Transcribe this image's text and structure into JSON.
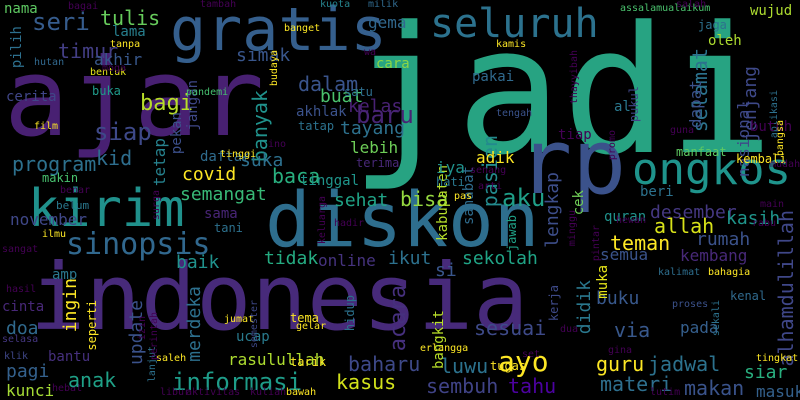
{
  "words": [
    {
      "text": "indonesia",
      "color": "#472a7a"
    },
    {
      "text": "jadi",
      "color": "#27a382"
    },
    {
      "text": "ajar",
      "color": "#482072"
    },
    {
      "text": "diskon",
      "color": "#2e6e8e"
    },
    {
      "text": "rp",
      "color": "#3b528b"
    },
    {
      "text": "gratis",
      "color": "#355f8d"
    },
    {
      "text": "kirim",
      "color": "#20918c"
    },
    {
      "text": "ongkos",
      "color": "#1f948c"
    },
    {
      "text": "seluruh",
      "color": "#2c728e"
    },
    {
      "text": "sinopsis",
      "color": "#31688e"
    },
    {
      "text": "informasi",
      "color": "#1e9c89"
    },
    {
      "text": "seri",
      "color": "#365c8d"
    },
    {
      "text": "tulis",
      "color": "#67cc5c"
    },
    {
      "text": "lama",
      "color": "#277f8e"
    },
    {
      "text": "timur",
      "color": "#433e85"
    },
    {
      "text": "akhir",
      "color": "#38588c"
    },
    {
      "text": "pilih",
      "color": "#2d708e"
    },
    {
      "text": "nama",
      "color": "#5ec962"
    },
    {
      "text": "cerita",
      "color": "#404688"
    },
    {
      "text": "siap",
      "color": "#3e4989"
    },
    {
      "text": "bagi",
      "color": "#b8de29"
    },
    {
      "text": "buka",
      "color": "#1f9a8a"
    },
    {
      "text": "kid",
      "color": "#2e6e8e"
    },
    {
      "text": "program",
      "color": "#2d718e"
    },
    {
      "text": "makin",
      "color": "#48c16e"
    },
    {
      "text": "belum",
      "color": "#2a788e"
    },
    {
      "text": "november",
      "color": "#3f4788"
    },
    {
      "text": "sangat",
      "color": "#440154"
    },
    {
      "text": "ilmu",
      "color": "#fde725"
    },
    {
      "text": "hasil",
      "color": "#440154"
    },
    {
      "text": "cinta",
      "color": "#482878"
    },
    {
      "text": "doa",
      "color": "#306a8e"
    },
    {
      "text": "selasa",
      "color": "#453781"
    },
    {
      "text": "bantu",
      "color": "#46307e"
    },
    {
      "text": "pagi",
      "color": "#34618d"
    },
    {
      "text": "klik",
      "color": "#3f4788"
    },
    {
      "text": "kunci",
      "color": "#a5db36"
    },
    {
      "text": "hebat",
      "color": "#440154"
    },
    {
      "text": "gema",
      "color": "#31688e"
    },
    {
      "text": "cara",
      "color": "#8bd646"
    },
    {
      "text": "simak",
      "color": "#39568c"
    },
    {
      "text": "dalam",
      "color": "#3a548c"
    },
    {
      "text": "kelas",
      "color": "#482173"
    },
    {
      "text": "buat",
      "color": "#4ac16d"
    },
    {
      "text": "satu",
      "color": "#2e6e8e"
    },
    {
      "text": "akhlak",
      "color": "#3b528b"
    },
    {
      "text": "baru",
      "color": "#482475"
    },
    {
      "text": "banyak",
      "color": "#20928c"
    },
    {
      "text": "tatap",
      "color": "#2c728e"
    },
    {
      "text": "tayang",
      "color": "#2d718e"
    },
    {
      "text": "pekan",
      "color": "#3c508b"
    },
    {
      "text": "jangan",
      "color": "#3f4889"
    },
    {
      "text": "tetap",
      "color": "#26828e"
    },
    {
      "text": "lebih",
      "color": "#6ece58"
    },
    {
      "text": "covid",
      "color": "#fde725"
    },
    {
      "text": "suka",
      "color": "#2d708e"
    },
    {
      "text": "baca",
      "color": "#29af7f"
    },
    {
      "text": "tinggal",
      "color": "#1f958b"
    },
    {
      "text": "semangat",
      "color": "#38b977"
    },
    {
      "text": "sama",
      "color": "#482576"
    },
    {
      "text": "sehat",
      "color": "#20a386"
    },
    {
      "text": "bisa",
      "color": "#95d840"
    },
    {
      "text": "aku",
      "color": "#1f9f88"
    },
    {
      "text": "lengkap",
      "color": "#3d4e8a"
    },
    {
      "text": "teman",
      "color": "#fde725"
    },
    {
      "text": "allah",
      "color": "#d8e219"
    },
    {
      "text": "semua",
      "color": "#3a538b"
    },
    {
      "text": "tidak",
      "color": "#25ac82"
    },
    {
      "text": "online",
      "color": "#46337f"
    },
    {
      "text": "ikut",
      "color": "#2d718e"
    },
    {
      "text": "si",
      "color": "#39568c"
    },
    {
      "text": "sekolah",
      "color": "#20a486"
    },
    {
      "text": "baik",
      "color": "#20928c"
    },
    {
      "text": "amp",
      "color": "#2a778e"
    },
    {
      "text": "ingin",
      "color": "#fde725"
    },
    {
      "text": "merdeka",
      "color": "#2d708e"
    },
    {
      "text": "ucap",
      "color": "#297b8e"
    },
    {
      "text": "update",
      "color": "#3b528b"
    },
    {
      "text": "anak",
      "color": "#1fa187"
    },
    {
      "text": "kasus",
      "color": "#d2e21b"
    },
    {
      "text": "rasulullah",
      "color": "#addc30"
    },
    {
      "text": "baharu",
      "color": "#3e4989"
    },
    {
      "text": "sembuh",
      "color": "#404387"
    },
    {
      "text": "tahu",
      "color": "#4c02a1"
    },
    {
      "text": "luwu",
      "color": "#2c728e"
    },
    {
      "text": "ayo",
      "color": "#fde725"
    },
    {
      "text": "guru",
      "color": "#fde725"
    },
    {
      "text": "materi",
      "color": "#2e6f8e"
    },
    {
      "text": "jadwal",
      "color": "#2c728e"
    },
    {
      "text": "makan",
      "color": "#3a538b"
    },
    {
      "text": "siar",
      "color": "#29af7f"
    },
    {
      "text": "masuk",
      "color": "#34618d"
    },
    {
      "text": "sesuai",
      "color": "#3e4a89"
    },
    {
      "text": "via",
      "color": "#38588c"
    },
    {
      "text": "buku",
      "color": "#38588c"
    },
    {
      "text": "pada",
      "color": "#355f8d"
    },
    {
      "text": "kenal",
      "color": "#306a8e"
    },
    {
      "text": "kembang",
      "color": "#482979"
    },
    {
      "text": "rumah",
      "color": "#3b528b"
    },
    {
      "text": "desember",
      "color": "#453882"
    },
    {
      "text": "kasih",
      "color": "#1f958b"
    },
    {
      "text": "kabupaten",
      "color": "#b5de2b"
    },
    {
      "text": "sahabat",
      "color": "#2f6c8e"
    },
    {
      "text": "pasien",
      "color": "#238a8d"
    },
    {
      "text": "selamat",
      "color": "#2c738e"
    },
    {
      "text": "dapat",
      "color": "#3b528b"
    },
    {
      "text": "jenjang",
      "color": "#3e4989"
    },
    {
      "text": "nasional",
      "color": "#3e4989"
    },
    {
      "text": "alhamdulillah",
      "color": "#3f4788"
    },
    {
      "text": "kembali",
      "color": "#fde725"
    },
    {
      "text": "manfaat",
      "color": "#5ec962"
    },
    {
      "text": "oleh",
      "color": "#addc30"
    },
    {
      "text": "wujud",
      "color": "#addc30"
    },
    {
      "text": "jaga",
      "color": "#2d718e"
    },
    {
      "text": "iya",
      "color": "#20928c"
    },
    {
      "text": "adik",
      "color": "#fde725"
    },
    {
      "text": "didik",
      "color": "#2a788e"
    },
    {
      "text": "muka",
      "color": "#e5e419"
    },
    {
      "text": "kalimat",
      "color": "#2e6e8e"
    },
    {
      "text": "bahagia",
      "color": "#fde725"
    },
    {
      "text": "quran",
      "color": "#20928c"
    },
    {
      "text": "beri",
      "color": "#2c728e"
    },
    {
      "text": "cek",
      "color": "#70cf57"
    },
    {
      "text": "jawab",
      "color": "#1fa287"
    },
    {
      "text": "acara",
      "color": "#46307e"
    },
    {
      "text": "bangkit",
      "color": "#b8de29"
    },
    {
      "text": "kerja",
      "color": "#3e4a89"
    },
    {
      "text": "al",
      "color": "#2a788e"
    },
    {
      "text": "pukul",
      "color": "#404688"
    },
    {
      "text": "pakai",
      "color": "#306a8e"
    },
    {
      "text": "tengah",
      "color": "#3a538b"
    },
    {
      "text": "assalamualaikum",
      "color": "#4ac16d"
    },
    {
      "text": "salah",
      "color": "#440154"
    },
    {
      "text": "tambah",
      "color": "#440154"
    },
    {
      "text": "milik",
      "color": "#306a8e"
    },
    {
      "text": "kuota",
      "color": "#25848e"
    },
    {
      "text": "bagai",
      "color": "#440154"
    },
    {
      "text": "banget",
      "color": "#fde725"
    },
    {
      "text": "tanpa",
      "color": "#fde725"
    },
    {
      "text": "bentuk",
      "color": "#e5e419"
    },
    {
      "text": "budaya",
      "color": "#fde725"
    },
    {
      "text": "pandemi",
      "color": "#46c06f"
    },
    {
      "text": "hutan",
      "color": "#31688e"
    },
    {
      "text": "film",
      "color": "#fde725"
    },
    {
      "text": "daftar",
      "color": "#2f6c8e"
    },
    {
      "text": "tinggi",
      "color": "#fde725"
    },
    {
      "text": "terima",
      "color": "#482878"
    },
    {
      "text": "hati",
      "color": "#2a788e"
    },
    {
      "text": "senang",
      "color": "#440154"
    },
    {
      "text": "tani",
      "color": "#2d718e"
    },
    {
      "text": "benar",
      "color": "#440154"
    },
    {
      "text": "hadir",
      "color": "#440154"
    },
    {
      "text": "jumat",
      "color": "#fde725"
    },
    {
      "text": "semester",
      "color": "#3e4989"
    },
    {
      "text": "hidup",
      "color": "#2c728e"
    },
    {
      "text": "tema",
      "color": "#fde725"
    },
    {
      "text": "gelar",
      "color": "#fde725"
    },
    {
      "text": "seperti",
      "color": "#fde725"
    },
    {
      "text": "tarik",
      "color": "#fde725"
    },
    {
      "text": "saleh",
      "color": "#fde725"
    },
    {
      "text": "libur",
      "color": "#440154"
    },
    {
      "text": "aktivitas",
      "color": "#440154"
    },
    {
      "text": "kuliah",
      "color": "#440154"
    },
    {
      "text": "bawah",
      "color": "#fde725"
    },
    {
      "text": "lanjut",
      "color": "#2d718e"
    },
    {
      "text": "tugas",
      "color": "#fde725"
    },
    {
      "text": "set",
      "color": "#440154"
    },
    {
      "text": "gina",
      "color": "#440154"
    },
    {
      "text": "dua",
      "color": "#440154"
    },
    {
      "text": "proses",
      "color": "#3b528b"
    },
    {
      "text": "sekali",
      "color": "#2c728e"
    },
    {
      "text": "tingkat",
      "color": "#fde725"
    },
    {
      "text": "lutim",
      "color": "#440154"
    },
    {
      "text": "mudah",
      "color": "#440154"
    },
    {
      "text": "aplikasi",
      "color": "#2d718e"
    },
    {
      "text": "butuh",
      "color": "#440154"
    },
    {
      "text": "bangsa",
      "color": "#fde725"
    },
    {
      "text": "main",
      "color": "#440154"
    },
    {
      "text": "guna",
      "color": "#440154"
    },
    {
      "text": "minggu",
      "color": "#440154"
    },
    {
      "text": "pintar",
      "color": "#440154"
    },
    {
      "text": "rabu",
      "color": "#440154"
    },
    {
      "text": "tiap",
      "color": "#440154"
    },
    {
      "text": "hewan",
      "color": "#440154"
    },
    {
      "text": "pas",
      "color": "#fde725"
    },
    {
      "text": "arti",
      "color": "#440154"
    },
    {
      "text": "kamis",
      "color": "#fde725"
    },
    {
      "text": "keluarga",
      "color": "#440154"
    },
    {
      "text": "surga",
      "color": "#440154"
    },
    {
      "text": "erlangga",
      "color": "#fde725"
    },
    {
      "text": "perintah",
      "color": "#440154"
    },
    {
      "text": "izin",
      "color": "#440154"
    },
    {
      "text": "moga",
      "color": "#440154"
    },
    {
      "text": "thayyibah",
      "color": "#440154"
    },
    {
      "text": "promo",
      "color": "#440154"
    },
    {
      "text": "wa",
      "color": "#440154"
    },
    {
      "text": "ino",
      "color": "#440154"
    }
  ]
}
